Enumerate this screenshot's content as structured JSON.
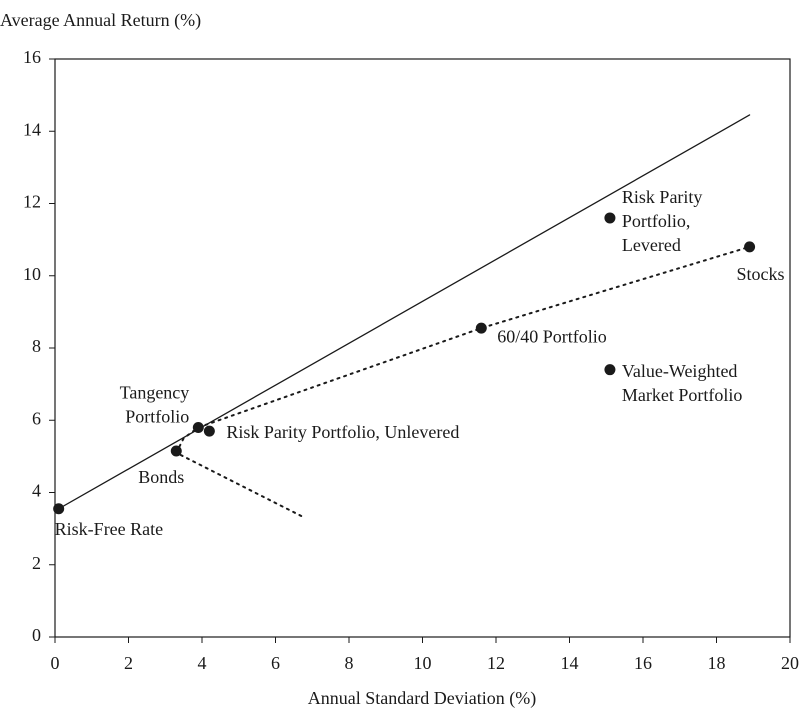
{
  "chart_data": {
    "type": "scatter",
    "title": "Average Annual Return (%)",
    "x_label": "Annual Standard Deviation (%)",
    "xlim": [
      0,
      20
    ],
    "xticks": [
      0,
      2,
      4,
      6,
      8,
      10,
      12,
      14,
      16,
      18,
      20
    ],
    "ylim": [
      0,
      16
    ],
    "yticks": [
      0,
      2,
      4,
      6,
      8,
      10,
      12,
      14,
      16
    ],
    "color": "#1a1a1a",
    "points": {
      "labels": [
        [
          "Risk-Free Rate"
        ],
        [
          "Bonds"
        ],
        [
          "Tangency",
          "Portfolio"
        ],
        [
          "Risk Parity Portfolio, Unlevered"
        ],
        [
          "60/40 Portfolio"
        ],
        [
          "Value-Weighted",
          "Market Portfolio"
        ],
        [
          "Risk Parity",
          "Portfolio,",
          "Levered"
        ],
        [
          "Stocks"
        ]
      ],
      "x": [
        0.1,
        3.3,
        3.9,
        4.2,
        11.6,
        15.1,
        15.1,
        18.9
      ],
      "y": [
        3.55,
        5.15,
        5.8,
        5.7,
        8.55,
        7.4,
        11.6,
        10.8
      ]
    },
    "lines": [
      {
        "style": "solid",
        "x": [
          0.1,
          18.9
        ],
        "y": [
          3.55,
          14.45
        ]
      },
      {
        "style": "dotted",
        "x": [
          6.7,
          3.3,
          3.5,
          3.9,
          11.6,
          18.9
        ],
        "y": [
          3.35,
          5.1,
          5.5,
          5.8,
          8.55,
          10.8
        ]
      }
    ]
  }
}
